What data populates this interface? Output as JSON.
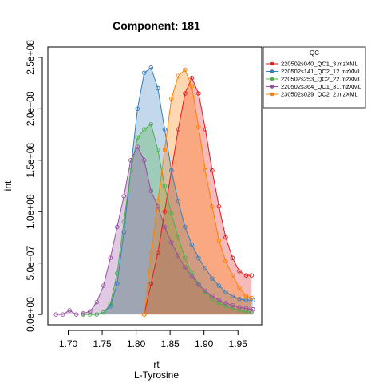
{
  "chart_data": {
    "type": "area",
    "title": "Component: 181",
    "xlabel": "rt",
    "xlabel_sub": "L-Tyrosine",
    "ylabel": "int",
    "xlim": [
      1.67,
      1.985
    ],
    "ylim": [
      -10000000,
      260000000
    ],
    "x_ticks": [
      1.7,
      1.75,
      1.8,
      1.85,
      1.9,
      1.95
    ],
    "x_tick_labels": [
      "1.70",
      "1.75",
      "1.80",
      "1.85",
      "1.90",
      "1.95"
    ],
    "y_ticks": [
      0,
      50000000,
      100000000,
      150000000,
      200000000,
      250000000
    ],
    "y_tick_labels": [
      "0.0e+00",
      "5.0e+07",
      "1.0e+08",
      "1.5e+08",
      "2.0e+08",
      "2.5e+08"
    ],
    "grid": false,
    "legend": {
      "title": "QC",
      "placement": "top-right"
    },
    "series": [
      {
        "name": "220502s040_QC1_3.mzXML",
        "color": "#e41a1c",
        "x": [
          1.812,
          1.822,
          1.832,
          1.842,
          1.852,
          1.862,
          1.872,
          1.882,
          1.892,
          1.902,
          1.912,
          1.922,
          1.932,
          1.942,
          1.952,
          1.962,
          1.97
        ],
        "y": [
          0,
          30000000,
          60000000,
          100000000,
          140000000,
          180000000,
          215000000,
          230000000,
          215000000,
          180000000,
          140000000,
          105000000,
          75000000,
          55000000,
          42000000,
          38000000,
          38000000
        ]
      },
      {
        "name": "220502s141_QC2_12.mzXML",
        "color": "#377eb8",
        "x": [
          1.742,
          1.752,
          1.762,
          1.772,
          1.782,
          1.792,
          1.802,
          1.812,
          1.822,
          1.832,
          1.842,
          1.852,
          1.862,
          1.872,
          1.882,
          1.892,
          1.902,
          1.912,
          1.922,
          1.932,
          1.942,
          1.952,
          1.962,
          1.972
        ],
        "y": [
          0,
          2000000,
          8000000,
          30000000,
          80000000,
          140000000,
          200000000,
          235000000,
          240000000,
          220000000,
          180000000,
          140000000,
          110000000,
          85000000,
          68000000,
          55000000,
          45000000,
          35000000,
          28000000,
          22000000,
          18000000,
          15000000,
          14000000,
          14000000
        ]
      },
      {
        "name": "220502s253_QC2_22.mzXML",
        "color": "#4daf4a",
        "x": [
          1.722,
          1.732,
          1.742,
          1.752,
          1.762,
          1.772,
          1.782,
          1.792,
          1.802,
          1.812,
          1.822,
          1.832,
          1.842,
          1.852,
          1.862,
          1.872,
          1.882,
          1.892,
          1.902,
          1.912,
          1.922,
          1.932,
          1.942,
          1.952,
          1.962,
          1.97
        ],
        "y": [
          0,
          0,
          0,
          2000000,
          10000000,
          40000000,
          90000000,
          140000000,
          172000000,
          180000000,
          185000000,
          160000000,
          125000000,
          98000000,
          75000000,
          55000000,
          40000000,
          30000000,
          22000000,
          15000000,
          11000000,
          8000000,
          6000000,
          4000000,
          3000000,
          2000000
        ]
      },
      {
        "name": "220502s364_QC1_31.mzXML",
        "color": "#984ea3",
        "x": [
          1.682,
          1.692,
          1.702,
          1.712,
          1.722,
          1.732,
          1.742,
          1.752,
          1.762,
          1.772,
          1.782,
          1.792,
          1.802,
          1.812,
          1.822,
          1.832,
          1.842,
          1.852,
          1.862,
          1.872,
          1.882,
          1.892,
          1.902,
          1.912,
          1.922,
          1.932,
          1.942,
          1.952,
          1.962,
          1.972
        ],
        "y": [
          0,
          0,
          4000000,
          0,
          1000000,
          3000000,
          12000000,
          28000000,
          55000000,
          85000000,
          115000000,
          150000000,
          163000000,
          150000000,
          120000000,
          105000000,
          85000000,
          70000000,
          57000000,
          46000000,
          37000000,
          29000000,
          23000000,
          18000000,
          14000000,
          11000000,
          9000000,
          7000000,
          6000000,
          5000000
        ]
      },
      {
        "name": "230502s029_QC2_2.mzXML",
        "color": "#ff7f00",
        "x": [
          1.812,
          1.822,
          1.832,
          1.842,
          1.852,
          1.862,
          1.872,
          1.882,
          1.892,
          1.902,
          1.912,
          1.922,
          1.932,
          1.942,
          1.952,
          1.962,
          1.97
        ],
        "y": [
          0,
          60000000,
          110000000,
          160000000,
          210000000,
          232000000,
          238000000,
          222000000,
          182000000,
          140000000,
          105000000,
          72000000,
          52000000,
          38000000,
          26000000,
          18000000,
          16000000
        ]
      }
    ]
  }
}
